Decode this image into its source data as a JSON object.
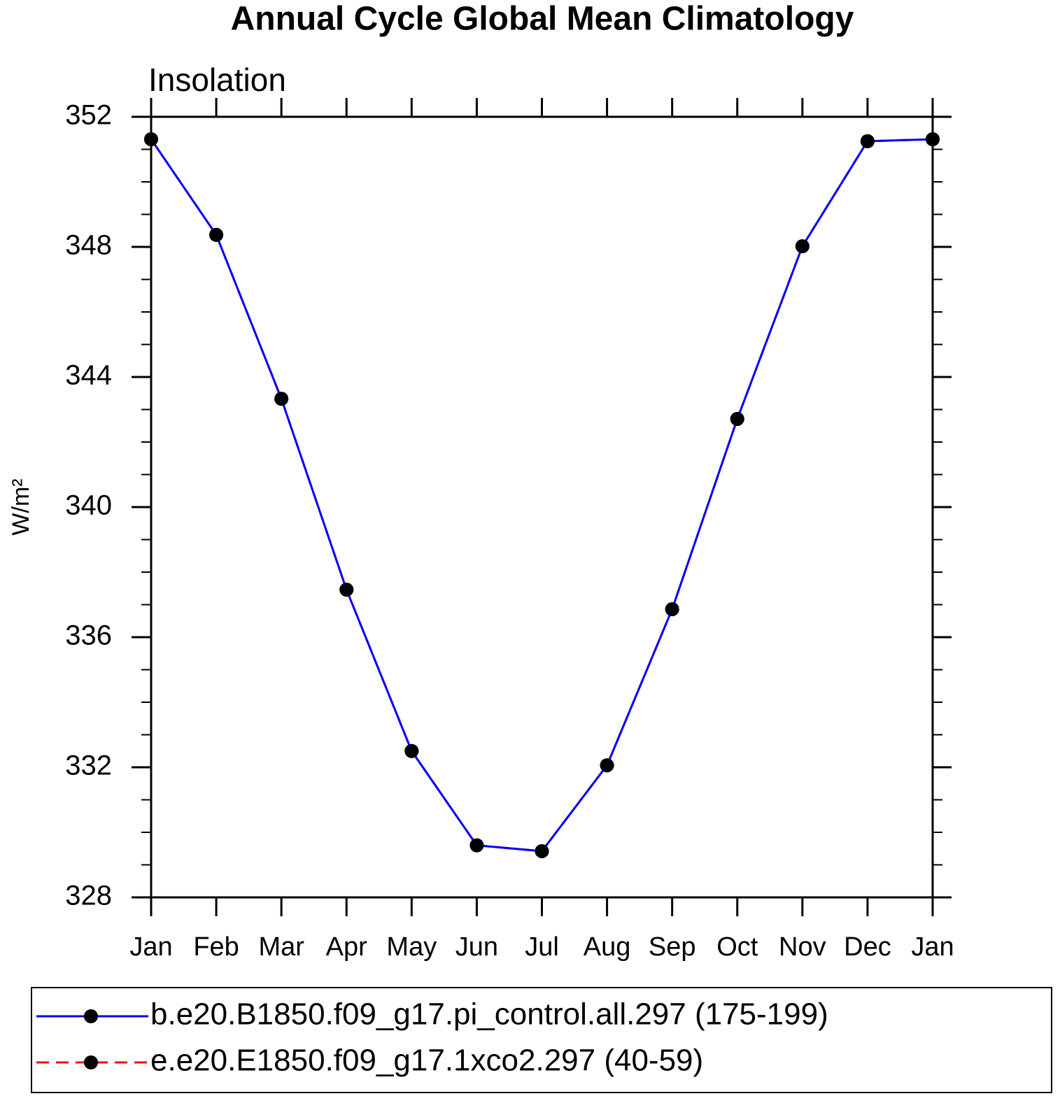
{
  "chart_data": {
    "type": "line",
    "title": "Annual Cycle Global Mean Climatology",
    "subtitle": "Insolation",
    "y_label": "W/m²",
    "categories": [
      "Jan",
      "Feb",
      "Mar",
      "Apr",
      "May",
      "Jun",
      "Jul",
      "Aug",
      "Sep",
      "Oct",
      "Nov",
      "Dec",
      "Jan"
    ],
    "series": [
      {
        "name": "b.e20.B1850.f09_g17.pi_control.all.297 (175-199)",
        "color": "#0000ff",
        "dash": false,
        "values": [
          351.31,
          348.37,
          343.33,
          337.46,
          332.5,
          329.6,
          329.42,
          332.06,
          336.86,
          342.71,
          348.02,
          351.25,
          351.31
        ]
      },
      {
        "name": "e.e20.E1850.f09_g17.1xco2.297 (40-59)",
        "color": "#ff0000",
        "dash": true,
        "values": [
          351.31,
          348.37,
          343.33,
          337.46,
          332.5,
          329.6,
          329.42,
          332.06,
          336.86,
          342.71,
          348.02,
          351.25,
          351.31
        ]
      }
    ],
    "ylim": [
      328,
      352
    ],
    "yticks": [
      328,
      332,
      336,
      340,
      344,
      348,
      352
    ],
    "marker_color": "#000000"
  }
}
